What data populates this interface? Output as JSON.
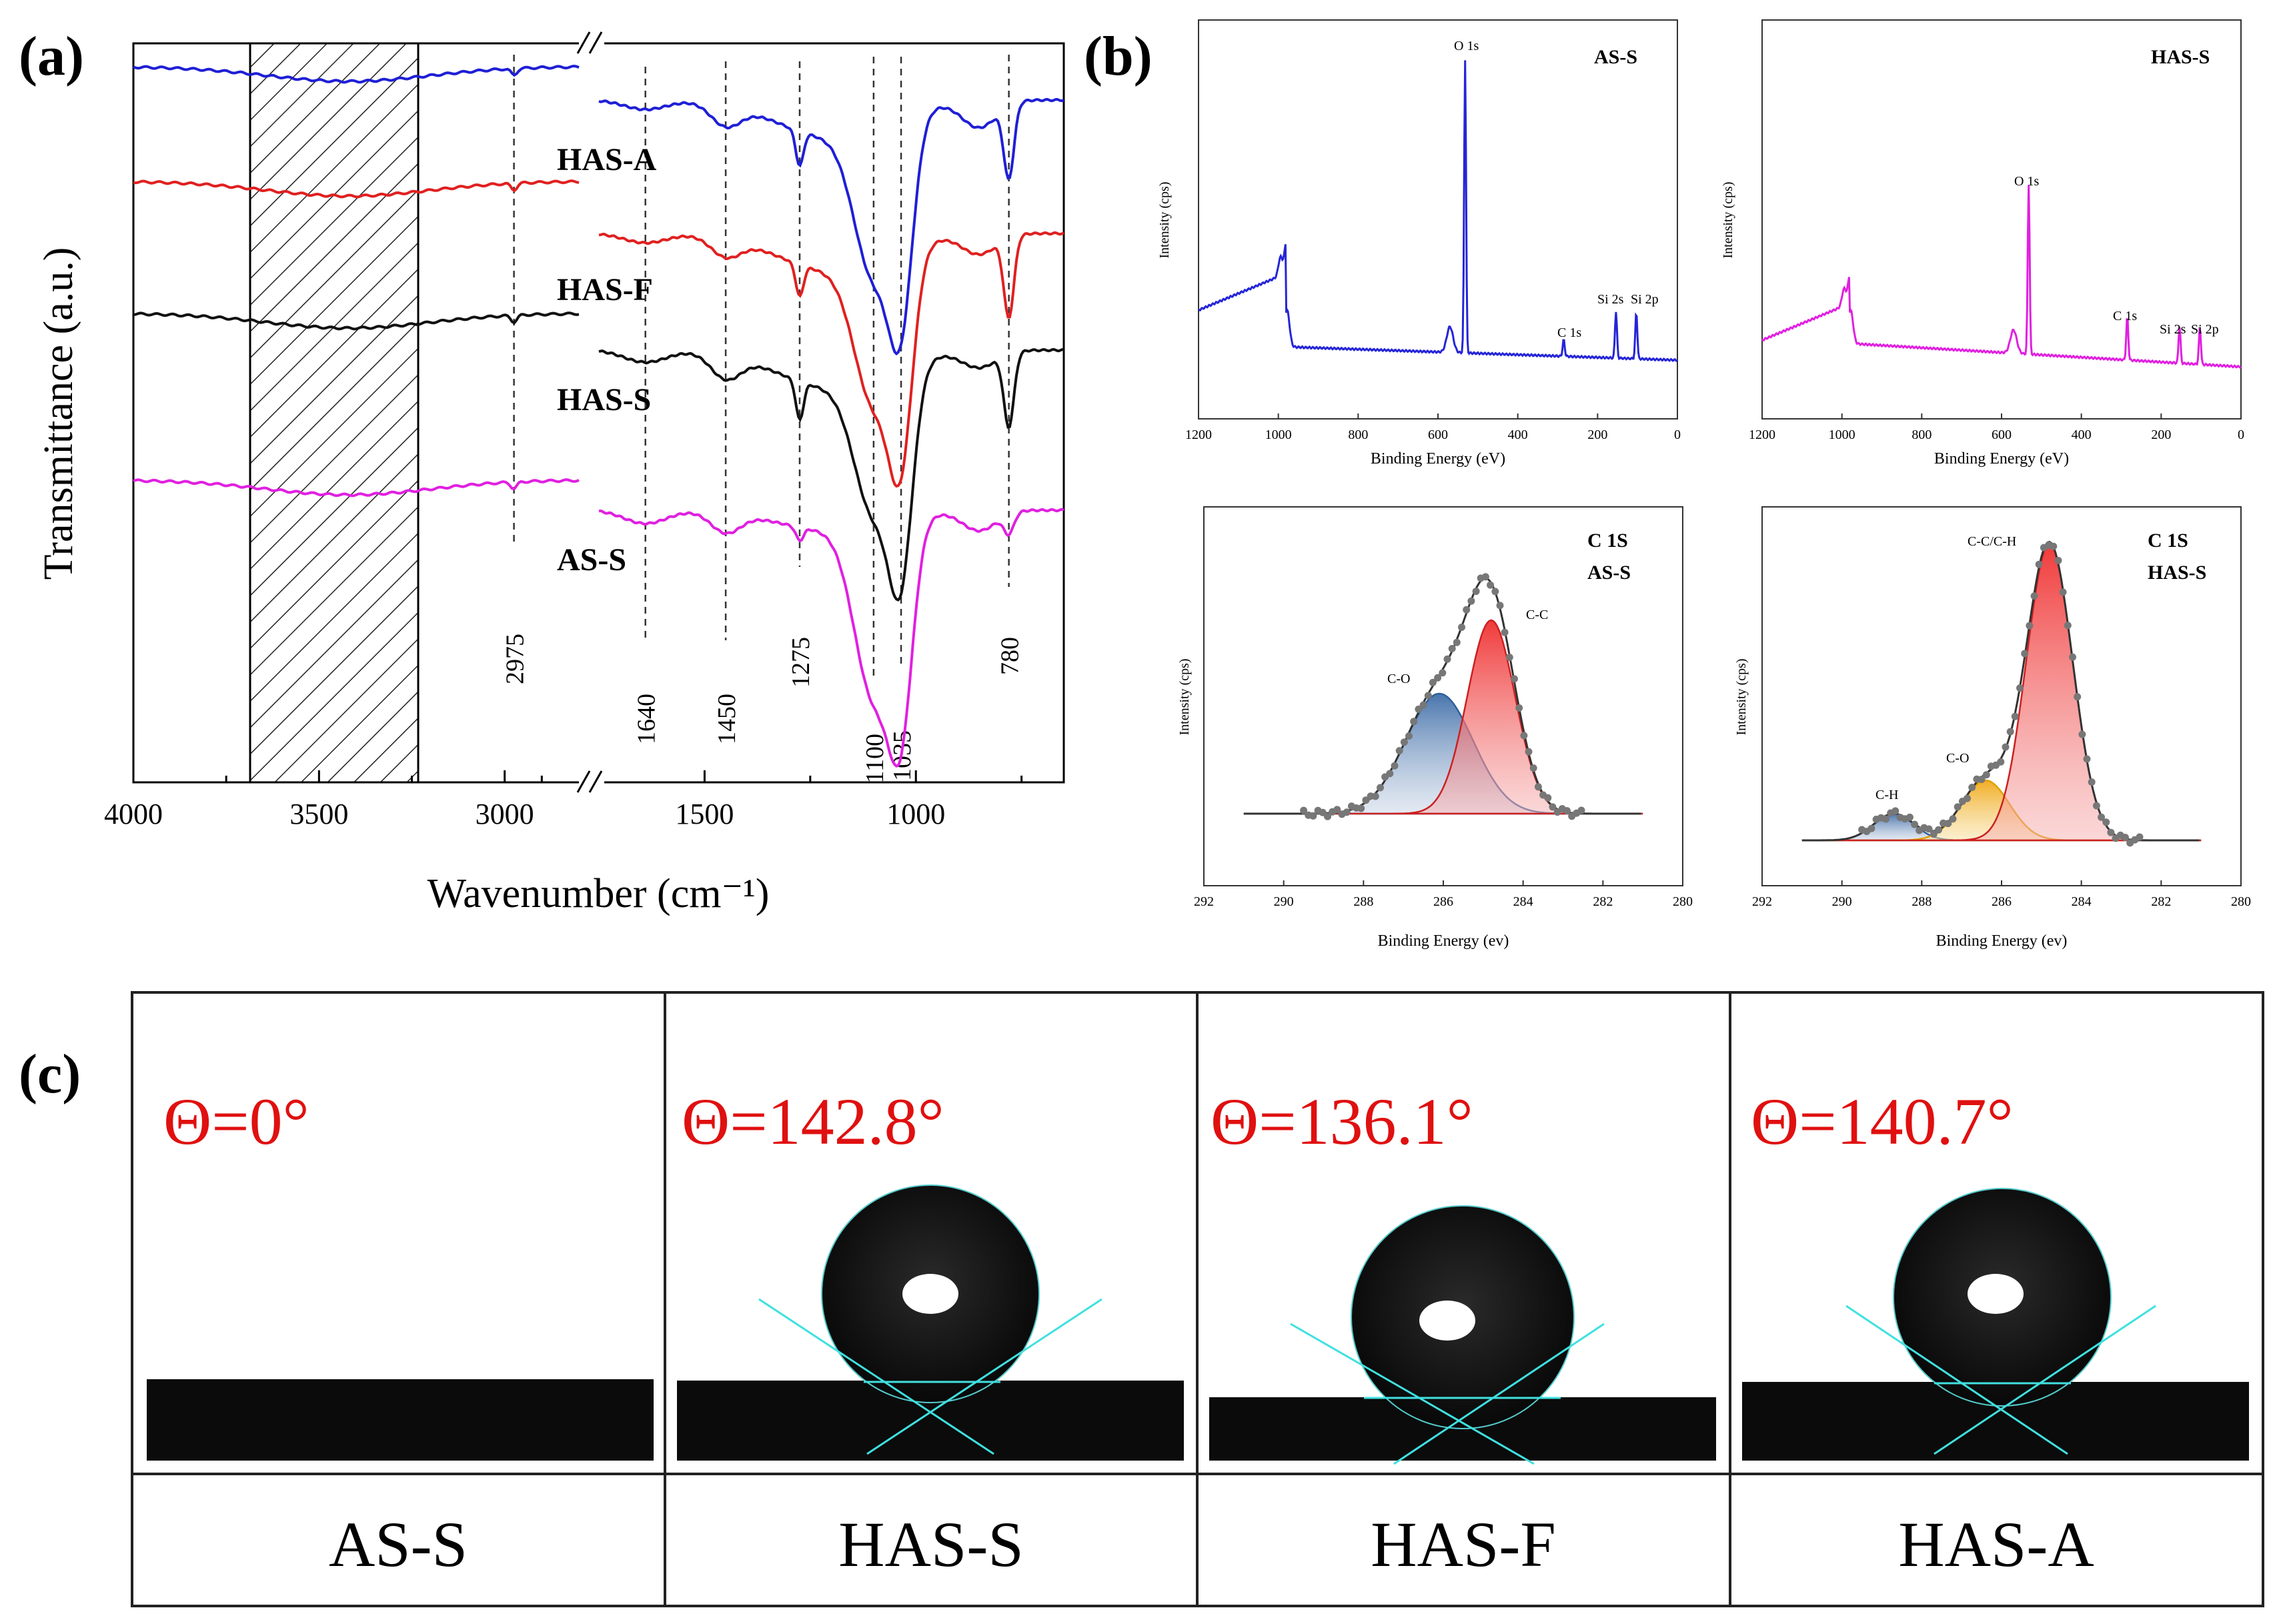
{
  "panel_labels": {
    "a": "(a)",
    "b": "(b)",
    "c": "(c)"
  },
  "chart_data": [
    {
      "id": "ftir",
      "type": "line",
      "title": "",
      "xlabel": "Wavenumber (cm⁻¹)",
      "ylabel": "Transmittance (a.u.)",
      "x_ticks": [
        4000,
        3500,
        3000,
        1500,
        1000
      ],
      "axis_break": [
        2800,
        1750
      ],
      "shaded_region": [
        3680,
        3200
      ],
      "series": [
        {
          "name": "HAS-A",
          "color": "#1f1fd6"
        },
        {
          "name": "HAS-F",
          "color": "#e02020"
        },
        {
          "name": "HAS-S",
          "color": "#111111"
        },
        {
          "name": "AS-S",
          "color": "#e020e0"
        }
      ],
      "peaks": [
        {
          "x": 2975,
          "label": "2975"
        },
        {
          "x": 1640,
          "label": "1640"
        },
        {
          "x": 1450,
          "label": "1450"
        },
        {
          "x": 1275,
          "label": "1275"
        },
        {
          "x": 1100,
          "label": "1100"
        },
        {
          "x": 1035,
          "label": "1035"
        },
        {
          "x": 780,
          "label": "780"
        }
      ]
    },
    {
      "id": "xps-survey-as-s",
      "type": "line",
      "title": "AS-S",
      "xlabel": "Binding Energy (eV)",
      "ylabel": "Intensity (cps)",
      "color": "#2525d8",
      "x_ticks": [
        1200,
        1000,
        800,
        600,
        400,
        200,
        0
      ],
      "annotations": [
        "O 1s",
        "C 1s",
        "Si 2s",
        "Si 2p"
      ]
    },
    {
      "id": "xps-survey-has-s",
      "type": "line",
      "title": "HAS-S",
      "xlabel": "Binding Energy (eV)",
      "ylabel": "Intensity (cps)",
      "color": "#e020e0",
      "x_ticks": [
        1200,
        1000,
        800,
        600,
        400,
        200,
        0
      ],
      "annotations": [
        "O 1s",
        "C 1s",
        "Si 2s",
        "Si 2p"
      ]
    },
    {
      "id": "xps-c1s-as-s",
      "type": "area",
      "title": "C 1S",
      "subtitle": "AS-S",
      "xlabel": "Binding Energy (ev)",
      "ylabel": "Intensity (cps)",
      "x_ticks": [
        292,
        290,
        288,
        286,
        284,
        282,
        280
      ],
      "components": [
        {
          "name": "C-C",
          "center": 284.8,
          "color": "#e03030"
        },
        {
          "name": "C-O",
          "center": 286.1,
          "color": "#4a78b0"
        }
      ]
    },
    {
      "id": "xps-c1s-has-s",
      "type": "area",
      "title": "C 1S",
      "subtitle": "HAS-S",
      "xlabel": "Binding Energy (ev)",
      "ylabel": "Intensity (cps)",
      "x_ticks": [
        292,
        290,
        288,
        286,
        284,
        282,
        280
      ],
      "components": [
        {
          "name": "C-C/C-H",
          "center": 284.8,
          "color": "#e03030"
        },
        {
          "name": "C-O",
          "center": 286.4,
          "color": "#f0b020"
        },
        {
          "name": "C-H",
          "center": 288.7,
          "color": "#4a78b0"
        }
      ]
    }
  ],
  "contact_angles": [
    {
      "sample": "AS-S",
      "angle_label": "Θ=0°",
      "angle": 0
    },
    {
      "sample": "HAS-S",
      "angle_label": "Θ=142.8°",
      "angle": 142.8
    },
    {
      "sample": "HAS-F",
      "angle_label": "Θ=136.1°",
      "angle": 136.1
    },
    {
      "sample": "HAS-A",
      "angle_label": "Θ=140.7°",
      "angle": 140.7
    }
  ]
}
